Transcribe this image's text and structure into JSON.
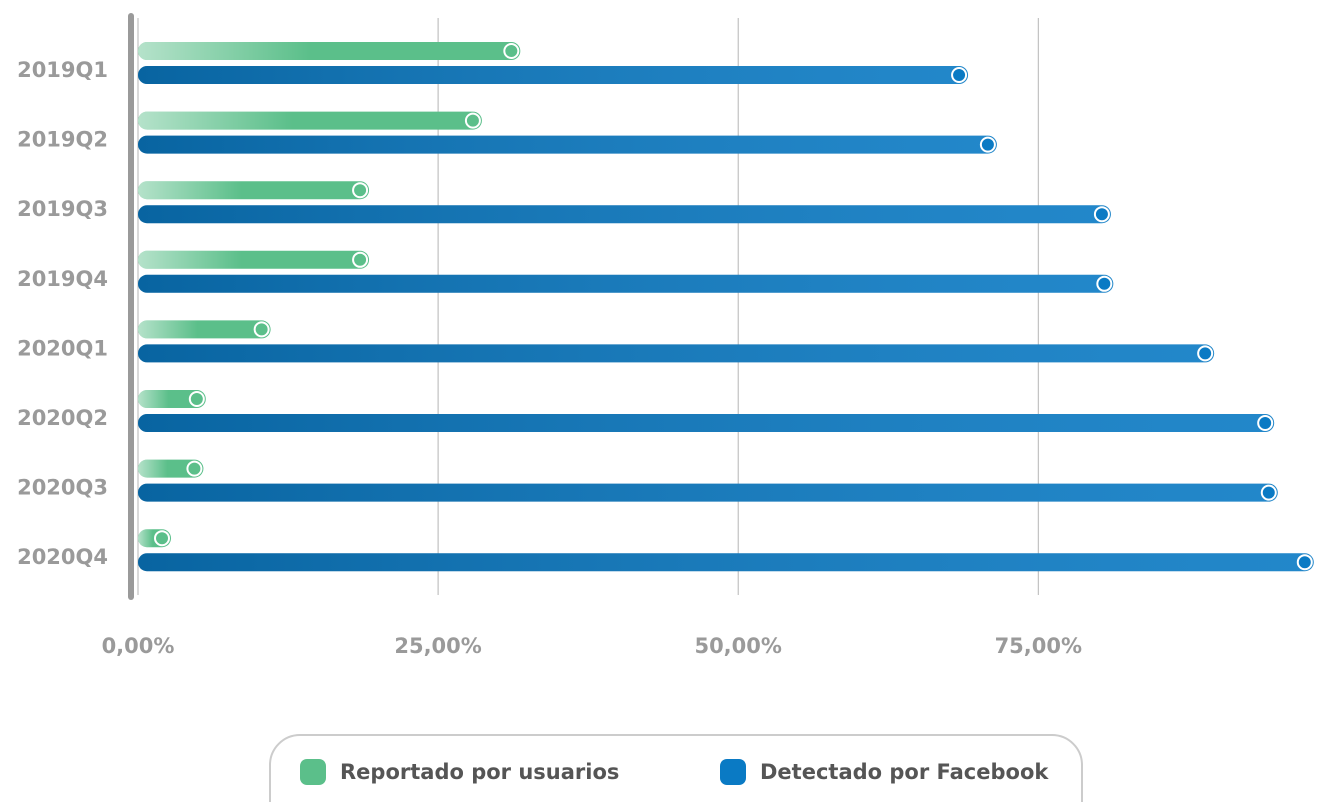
{
  "chart_data": {
    "type": "hbar",
    "categories": [
      "2019Q1",
      "2019Q2",
      "2019Q3",
      "2019Q4",
      "2020Q1",
      "2020Q2",
      "2020Q3",
      "2020Q4"
    ],
    "series": [
      {
        "name": "Reportado por usuarios",
        "color": "#5bbf8a",
        "values": [
          31.1,
          27.9,
          18.5,
          18.5,
          10.3,
          4.9,
          4.7,
          2.0
        ]
      },
      {
        "name": "Detectado por Facebook",
        "color": "#0a7ac4",
        "values": [
          68.4,
          70.8,
          80.3,
          80.5,
          88.9,
          93.9,
          94.2,
          97.2
        ]
      }
    ],
    "xlim": [
      0,
      99.3
    ],
    "xticks": [
      {
        "value": 0,
        "label": "0,00%"
      },
      {
        "value": 25,
        "label": "25,00%"
      },
      {
        "value": 50,
        "label": "50,00%"
      },
      {
        "value": 75,
        "label": "75,00%"
      }
    ],
    "grid": true,
    "legend": "bottom"
  }
}
